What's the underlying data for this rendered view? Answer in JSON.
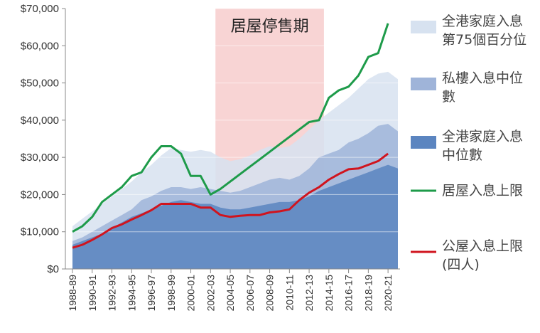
{
  "chart_data": {
    "type": "area",
    "title": "",
    "xlabel": "",
    "ylabel": "",
    "ylim": [
      0,
      70000
    ],
    "y_ticks": [
      "$0",
      "$10,000",
      "$20,000",
      "$30,000",
      "$40,000",
      "$50,000",
      "$60,000",
      "$70,000"
    ],
    "y_tick_values": [
      0,
      10000,
      20000,
      30000,
      40000,
      50000,
      60000,
      70000
    ],
    "x_tick_labels": [
      "1988-89",
      "1990-91",
      "1992-93",
      "1994-95",
      "1996-97",
      "1998-99",
      "2000-01",
      "2002-03",
      "2004-05",
      "2006-07",
      "2008-09",
      "2010-11",
      "2012-13",
      "2014-15",
      "2016-17",
      "2018-19",
      "2020-21"
    ],
    "x_tick_years": [
      1988,
      1990,
      1992,
      1994,
      1996,
      1998,
      2000,
      2002,
      2004,
      2006,
      2008,
      2010,
      2012,
      2014,
      2016,
      2018,
      2020
    ],
    "grid": "horizontal",
    "legend_position": "right",
    "shaded_period": {
      "label": "居屋停售期",
      "start_year": 2002.5,
      "end_year": 2013.5,
      "color": "#f4b8b8"
    },
    "x": [
      1988,
      1989,
      1990,
      1991,
      1992,
      1993,
      1994,
      1995,
      1996,
      1997,
      1998,
      1999,
      2000,
      2001,
      2002,
      2003,
      2004,
      2005,
      2006,
      2007,
      2008,
      2009,
      2010,
      2011,
      2012,
      2013,
      2014,
      2015,
      2016,
      2017,
      2018,
      2019,
      2020,
      2021
    ],
    "series": [
      {
        "name": "全港家庭入息第75個百分位",
        "legend_lines": [
          "全港家庭入息",
          "第75個百分位"
        ],
        "kind": "area",
        "color": "#d7e2f0",
        "values": [
          11500,
          13500,
          15500,
          17500,
          19500,
          21500,
          23500,
          26000,
          28000,
          30500,
          32500,
          32000,
          31500,
          32000,
          31500,
          30000,
          29000,
          29500,
          30500,
          32000,
          33000,
          32500,
          33000,
          35000,
          37500,
          40000,
          42000,
          44000,
          46000,
          48500,
          51000,
          52500,
          53000,
          51000
        ]
      },
      {
        "name": "私樓入息中位數",
        "legend_lines": [
          "私樓入息中位",
          "數"
        ],
        "kind": "area",
        "color": "#9fb4d9",
        "values": [
          7500,
          8500,
          10000,
          11500,
          13000,
          14500,
          16000,
          18500,
          19500,
          21000,
          22000,
          22000,
          21500,
          22000,
          21500,
          21000,
          20500,
          21000,
          22000,
          23000,
          24000,
          24500,
          24000,
          25000,
          27000,
          30000,
          31000,
          32000,
          34000,
          35000,
          36500,
          38500,
          39000,
          37000
        ]
      },
      {
        "name": "全港家庭入息中位數",
        "legend_lines": [
          "全港家庭入息",
          "中位數"
        ],
        "kind": "area",
        "color": "#5b85c0",
        "values": [
          6500,
          7500,
          8500,
          9500,
          11000,
          12500,
          14000,
          15000,
          16000,
          17000,
          18000,
          18500,
          18000,
          17500,
          17500,
          16500,
          16000,
          16000,
          16500,
          17000,
          17500,
          18000,
          18000,
          18500,
          19500,
          21000,
          22000,
          23000,
          24000,
          25000,
          26000,
          27000,
          28000,
          27000
        ]
      },
      {
        "name": "居屋入息上限",
        "legend_lines": [
          "居屋入息上限"
        ],
        "kind": "line",
        "color": "#1e9b4a",
        "values": [
          10000,
          11500,
          14000,
          18000,
          20000,
          22000,
          25000,
          26000,
          30000,
          33000,
          33000,
          31000,
          25000,
          25000,
          20000,
          21500,
          23500,
          25500,
          27500,
          29500,
          31500,
          33500,
          35500,
          37500,
          39500,
          40000,
          46000,
          48000,
          49000,
          52000,
          57000,
          58000,
          66000,
          null
        ]
      },
      {
        "name": "公屋入息上限(四人)",
        "legend_lines": [
          "公屋入息上限",
          "(四人)"
        ],
        "kind": "line",
        "color": "#d0141e",
        "values": [
          5700,
          6500,
          7800,
          9300,
          11000,
          12000,
          13300,
          14500,
          15800,
          17500,
          17500,
          17500,
          17500,
          16500,
          16500,
          14500,
          14000,
          14300,
          14500,
          14500,
          15200,
          15500,
          16000,
          18500,
          20500,
          22000,
          24000,
          25500,
          26800,
          27000,
          28000,
          29000,
          31000,
          null
        ]
      }
    ]
  }
}
